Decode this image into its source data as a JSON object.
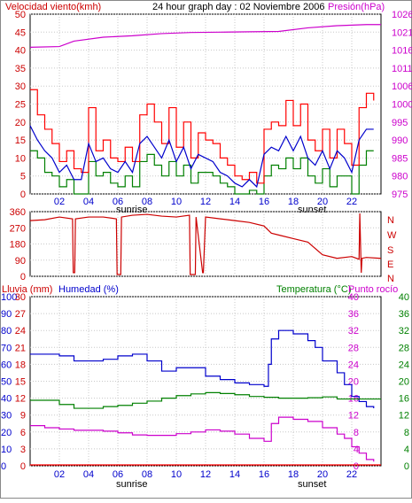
{
  "header": {
    "wind_title": "Velocidad viento(kmh)",
    "graph_title": "24 hour graph day : 02 Noviembre 2006",
    "pressure_title": "Presión(hPa)"
  },
  "middle": {
    "compass": [
      "N",
      "W",
      "S",
      "E",
      "N"
    ]
  },
  "bottom_header": {
    "rain_label": "Lluvia (mm)",
    "humidity_label": "Humedad (%)",
    "temp_label": "Temperatura (°C)",
    "dew_label": "Punto rocío"
  },
  "labels": {
    "sunrise": "sunrise",
    "sunset": "sunset"
  },
  "colors": {
    "wind": "#ff0000",
    "gust_avg": "#0000cc",
    "wind_min": "#008000",
    "pressure": "#cc00cc",
    "direction": "#cc0000",
    "humidity": "#0000cc",
    "temperature": "#008000",
    "dewpoint": "#cc00cc",
    "rain": "#ff0000",
    "axis_red": "#cc0000",
    "axis_blue": "#0000cc",
    "axis_green": "#008000",
    "axis_magenta": "#cc00cc"
  },
  "chart_data": [
    {
      "type": "line",
      "title": "24 hour graph day : 02 Noviembre 2006",
      "x_ticks": [
        "02",
        "04",
        "06",
        "08",
        "10",
        "12",
        "14",
        "16",
        "18",
        "20",
        "22"
      ],
      "xlim": [
        0,
        24
      ],
      "ylabel_left": "Velocidad viento(kmh)",
      "ylim_left": [
        0,
        50
      ],
      "yticks_left": [
        0,
        5,
        10,
        15,
        20,
        25,
        30,
        35,
        40,
        45,
        50
      ],
      "ylabel_right": "Presión(hPa)",
      "ylim_right": [
        975,
        1025
      ],
      "yticks_right": [
        975,
        980,
        985,
        990,
        995,
        1000,
        1006,
        1011,
        1016,
        1021,
        1026
      ],
      "grid": true,
      "series": [
        {
          "name": "Velocidad viento",
          "axis": "left",
          "color": "#ff0000",
          "x": [
            0,
            0.5,
            1,
            1.5,
            2,
            2.5,
            3,
            3.5,
            4,
            4.5,
            5,
            5.5,
            6,
            6.5,
            7,
            7.5,
            8,
            8.5,
            9,
            9.5,
            10,
            10.5,
            11,
            11.5,
            12,
            12.5,
            13,
            13.5,
            14,
            14.5,
            15,
            15.5,
            16,
            16.5,
            17,
            17.5,
            18,
            18.5,
            19,
            19.5,
            20,
            20.5,
            21,
            21.5,
            22,
            22.5,
            23,
            23.5
          ],
          "y": [
            29,
            22,
            18,
            14,
            9,
            12,
            7,
            6,
            24,
            12,
            15,
            10,
            9,
            13,
            9,
            22,
            25,
            20,
            14,
            24,
            13,
            20,
            10,
            17,
            15,
            14,
            10,
            8,
            5,
            4,
            6,
            3,
            18,
            20,
            19,
            26,
            19,
            25,
            15,
            12,
            18,
            10,
            18,
            14,
            8,
            24,
            28,
            26
          ]
        },
        {
          "name": "Media",
          "axis": "left",
          "color": "#0000cc",
          "x": [
            0,
            0.5,
            1,
            1.5,
            2,
            2.5,
            3,
            3.5,
            4,
            4.5,
            5,
            5.5,
            6,
            6.5,
            7,
            7.5,
            8,
            8.5,
            9,
            9.5,
            10,
            10.5,
            11,
            11.5,
            12,
            12.5,
            13,
            13.5,
            14,
            14.5,
            15,
            15.5,
            16,
            16.5,
            17,
            17.5,
            18,
            18.5,
            19,
            19.5,
            20,
            20.5,
            21,
            21.5,
            22,
            22.5,
            23,
            23.5
          ],
          "y": [
            19,
            15,
            12,
            10,
            6,
            8,
            4,
            4,
            14,
            9,
            10,
            7,
            6,
            9,
            6,
            14,
            16,
            13,
            10,
            15,
            9,
            13,
            7,
            11,
            10,
            9,
            6,
            5,
            3,
            2,
            4,
            2,
            11,
            13,
            12,
            16,
            12,
            16,
            10,
            8,
            12,
            7,
            12,
            10,
            6,
            15,
            18,
            18
          ]
        },
        {
          "name": "Mínima",
          "axis": "left",
          "color": "#008000",
          "x": [
            0,
            0.5,
            1,
            1.5,
            2,
            2.5,
            3,
            3.5,
            4,
            4.5,
            5,
            5.5,
            6,
            6.5,
            7,
            7.5,
            8,
            8.5,
            9,
            9.5,
            10,
            10.5,
            11,
            11.5,
            12,
            12.5,
            13,
            13.5,
            14,
            14.5,
            15,
            15.5,
            16,
            16.5,
            17,
            17.5,
            18,
            18.5,
            19,
            19.5,
            20,
            20.5,
            21,
            21.5,
            22,
            22.5,
            23,
            23.5
          ],
          "y": [
            12,
            10,
            6,
            5,
            2,
            4,
            0,
            0,
            9,
            5,
            6,
            3,
            2,
            5,
            2,
            9,
            11,
            8,
            5,
            9,
            5,
            8,
            3,
            6,
            6,
            5,
            3,
            2,
            0,
            0,
            1,
            0,
            5,
            8,
            7,
            10,
            7,
            10,
            5,
            3,
            7,
            2,
            5,
            5,
            0,
            8,
            12,
            12
          ]
        },
        {
          "name": "Presión",
          "axis": "right",
          "color": "#cc00cc",
          "x": [
            0,
            2,
            3,
            5,
            7,
            9,
            11,
            13,
            15,
            17,
            19,
            21,
            23,
            24
          ],
          "y": [
            1015.8,
            1016,
            1017.5,
            1018.6,
            1019,
            1019.6,
            1019.9,
            1020,
            1020.1,
            1020.2,
            1021.2,
            1021.8,
            1022.1,
            1022.1
          ]
        }
      ]
    },
    {
      "type": "line",
      "ylabel_right": "N W S E N",
      "ylim": [
        0,
        360
      ],
      "yticks": [
        0,
        90,
        180,
        270,
        360
      ],
      "x_ticks": [
        "02",
        "04",
        "06",
        "08",
        "10",
        "12",
        "14",
        "16",
        "18",
        "20",
        "22"
      ],
      "series": [
        {
          "name": "Dirección viento",
          "color": "#cc0000",
          "x": [
            0,
            1,
            2,
            2.9,
            2.95,
            3.05,
            3.1,
            4,
            5,
            5.9,
            5.95,
            6.2,
            6.25,
            7,
            8,
            9,
            10,
            10.9,
            10.95,
            11.3,
            11.35,
            11.8,
            11.85,
            12,
            13,
            14,
            15,
            16,
            16.5,
            17,
            18,
            19,
            20,
            21,
            22,
            22.5,
            22.55,
            22.65,
            22.7,
            23,
            24
          ],
          "y": [
            310,
            315,
            330,
            320,
            20,
            20,
            320,
            330,
            330,
            320,
            10,
            10,
            330,
            340,
            345,
            335,
            330,
            340,
            10,
            10,
            330,
            20,
            20,
            330,
            320,
            310,
            300,
            280,
            240,
            230,
            210,
            190,
            120,
            100,
            110,
            95,
            350,
            20,
            100,
            105,
            100
          ]
        }
      ]
    },
    {
      "type": "line",
      "x_ticks": [
        "02",
        "04",
        "06",
        "08",
        "10",
        "12",
        "14",
        "16",
        "18",
        "20",
        "22"
      ],
      "yticks_rain": [
        0,
        3,
        6,
        9,
        12,
        15,
        18,
        21,
        24,
        27,
        30
      ],
      "ylim_rain": [
        0,
        30
      ],
      "yticks_humidity": [
        0,
        10,
        20,
        30,
        40,
        50,
        60,
        70,
        80,
        90,
        100
      ],
      "ylim_humidity": [
        0,
        100
      ],
      "yticks_temp_inner": [
        0,
        4,
        8,
        12,
        16,
        20,
        24,
        28,
        32,
        36,
        40
      ],
      "yticks_temp_outer": [
        0,
        4,
        8,
        12,
        16,
        20,
        24,
        28,
        32,
        36,
        40
      ],
      "ylim_temp": [
        0,
        40
      ],
      "series": [
        {
          "name": "Lluvia",
          "axis": "rain",
          "color": "#ff0000",
          "x": [
            0,
            24
          ],
          "y": [
            0,
            0
          ]
        },
        {
          "name": "Humedad",
          "axis": "humidity",
          "color": "#0000cc",
          "x": [
            0,
            1,
            2,
            3,
            4,
            5,
            6,
            7,
            8,
            9,
            10,
            11,
            12,
            13,
            14,
            15,
            16,
            16.3,
            16.5,
            17,
            18,
            19,
            19.5,
            20,
            21,
            21.5,
            22,
            22.5,
            23,
            23.5
          ],
          "y": [
            66,
            66,
            65,
            62,
            62,
            63,
            65,
            66,
            62,
            56,
            58,
            58,
            53,
            51,
            49,
            48,
            47,
            60,
            75,
            80,
            78,
            74,
            70,
            62,
            55,
            48,
            41,
            38,
            35,
            34
          ]
        },
        {
          "name": "Temperatura",
          "axis": "temp",
          "color": "#008000",
          "x": [
            0,
            2,
            3,
            4,
            5,
            6,
            7,
            8,
            9,
            10,
            11,
            12,
            13,
            14,
            15,
            16,
            17,
            18,
            19,
            20,
            21,
            22,
            23,
            24
          ],
          "y": [
            15.5,
            14.5,
            13.6,
            13.6,
            14,
            14.3,
            14.8,
            15.3,
            16,
            16.6,
            17,
            17.3,
            17.1,
            16.8,
            16.4,
            16.2,
            16,
            16,
            16.1,
            16.3,
            15.8,
            15.8,
            15.8,
            15.8
          ]
        },
        {
          "name": "Punto rocío",
          "axis": "temp",
          "color": "#cc00cc",
          "x": [
            0,
            1,
            2,
            3,
            4,
            5,
            6,
            7,
            8,
            9,
            10,
            11,
            12,
            13,
            14,
            15,
            16,
            16.5,
            17,
            18,
            19,
            20,
            21,
            21.5,
            22,
            22.5,
            23,
            23.5
          ],
          "y": [
            9.5,
            9,
            8.7,
            8.4,
            8.4,
            8.2,
            7.8,
            7.3,
            7.2,
            7.2,
            7.6,
            8,
            8.5,
            8.2,
            7.5,
            6.5,
            5.8,
            10,
            11.5,
            11,
            10.5,
            9,
            7.5,
            6.5,
            4.5,
            3,
            1.5,
            1
          ]
        }
      ]
    }
  ]
}
